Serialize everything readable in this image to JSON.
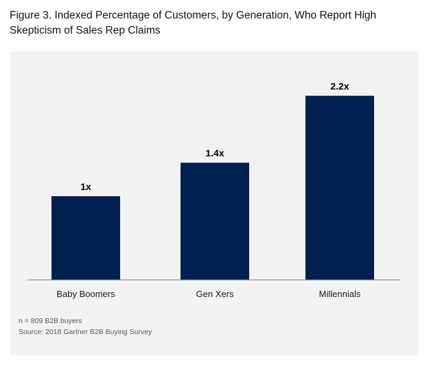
{
  "title": "Figure 3. Indexed Percentage of Customers, by Generation, Who Report High Skepticism of Sales Rep Claims",
  "colors": {
    "bar": "#002050",
    "panel_background": "#f2f2f2",
    "axis": "#7a7a7a",
    "label": "#1a1a1a",
    "note": "#555555"
  },
  "chart_data": {
    "type": "bar",
    "title": "Figure 3. Indexed Percentage of Customers, by Generation, Who Report High Skepticism of Sales Rep Claims",
    "categories": [
      "Baby Boomers",
      "Gen Xers",
      "Millennials"
    ],
    "values": [
      1,
      1.4,
      2.2
    ],
    "data_labels": [
      "1x",
      "1.4x",
      "2.2x"
    ],
    "xlabel": "",
    "ylabel": "",
    "ylim": [
      0,
      2.5
    ],
    "grid": false,
    "legend": "none"
  },
  "notes": {
    "sample": "n = 809 B2B buyers",
    "source": "Source: 2018 Gartner B2B Buying Survey"
  }
}
